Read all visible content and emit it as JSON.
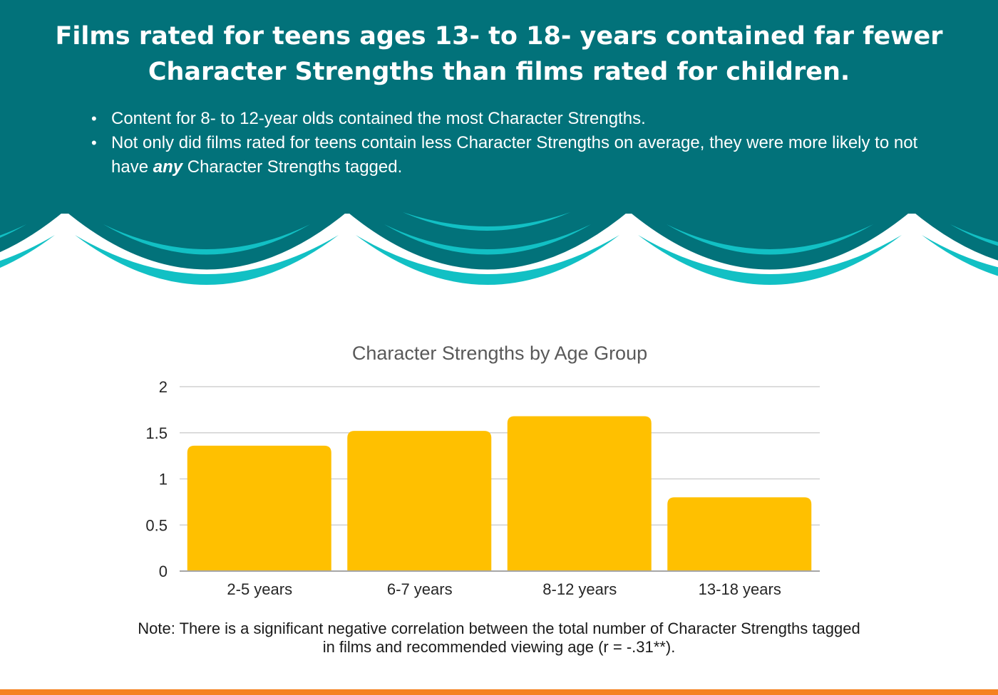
{
  "header": {
    "title_lines": [
      "Films rated for teens ages 13- to 18- years contained far fewer",
      "Character Strengths than films rated for children."
    ],
    "bullets": [
      {
        "text_before": "Content for 8- to 12-year olds contained the most Character Strengths.",
        "emphasis": "",
        "text_after": ""
      },
      {
        "text_before": "Not only did films rated for teens contain less Character Strengths on average, they were more likely to not have ",
        "emphasis": "any",
        "text_after": " Character Strengths tagged."
      }
    ]
  },
  "colors": {
    "banner": "#02727a",
    "banner_dark": "#026a72",
    "arc_accent": "#12c0c4",
    "bar": "#ffc000",
    "grid": "#d0d0d0",
    "axis": "#a6a6a6",
    "bottom_bar": "#f58220"
  },
  "chart_data": {
    "type": "bar",
    "title": "Character Strengths by Age Group",
    "categories": [
      "2-5 years",
      "6-7 years",
      "8-12 years",
      "13-18 years"
    ],
    "values": [
      1.36,
      1.52,
      1.68,
      0.8
    ],
    "ylim": [
      0,
      2
    ],
    "yticks": [
      0,
      0.5,
      1,
      1.5,
      2
    ],
    "ytick_labels": [
      "0",
      "0.5",
      "1",
      "1.5",
      "2"
    ],
    "xlabel": "",
    "ylabel": "",
    "grid": true,
    "legend": "none"
  },
  "note": {
    "line1": "Note: There is a significant negative correlation between the total number of Character Strengths tagged",
    "line2": "in films and recommended viewing age (r = -.31**)."
  }
}
